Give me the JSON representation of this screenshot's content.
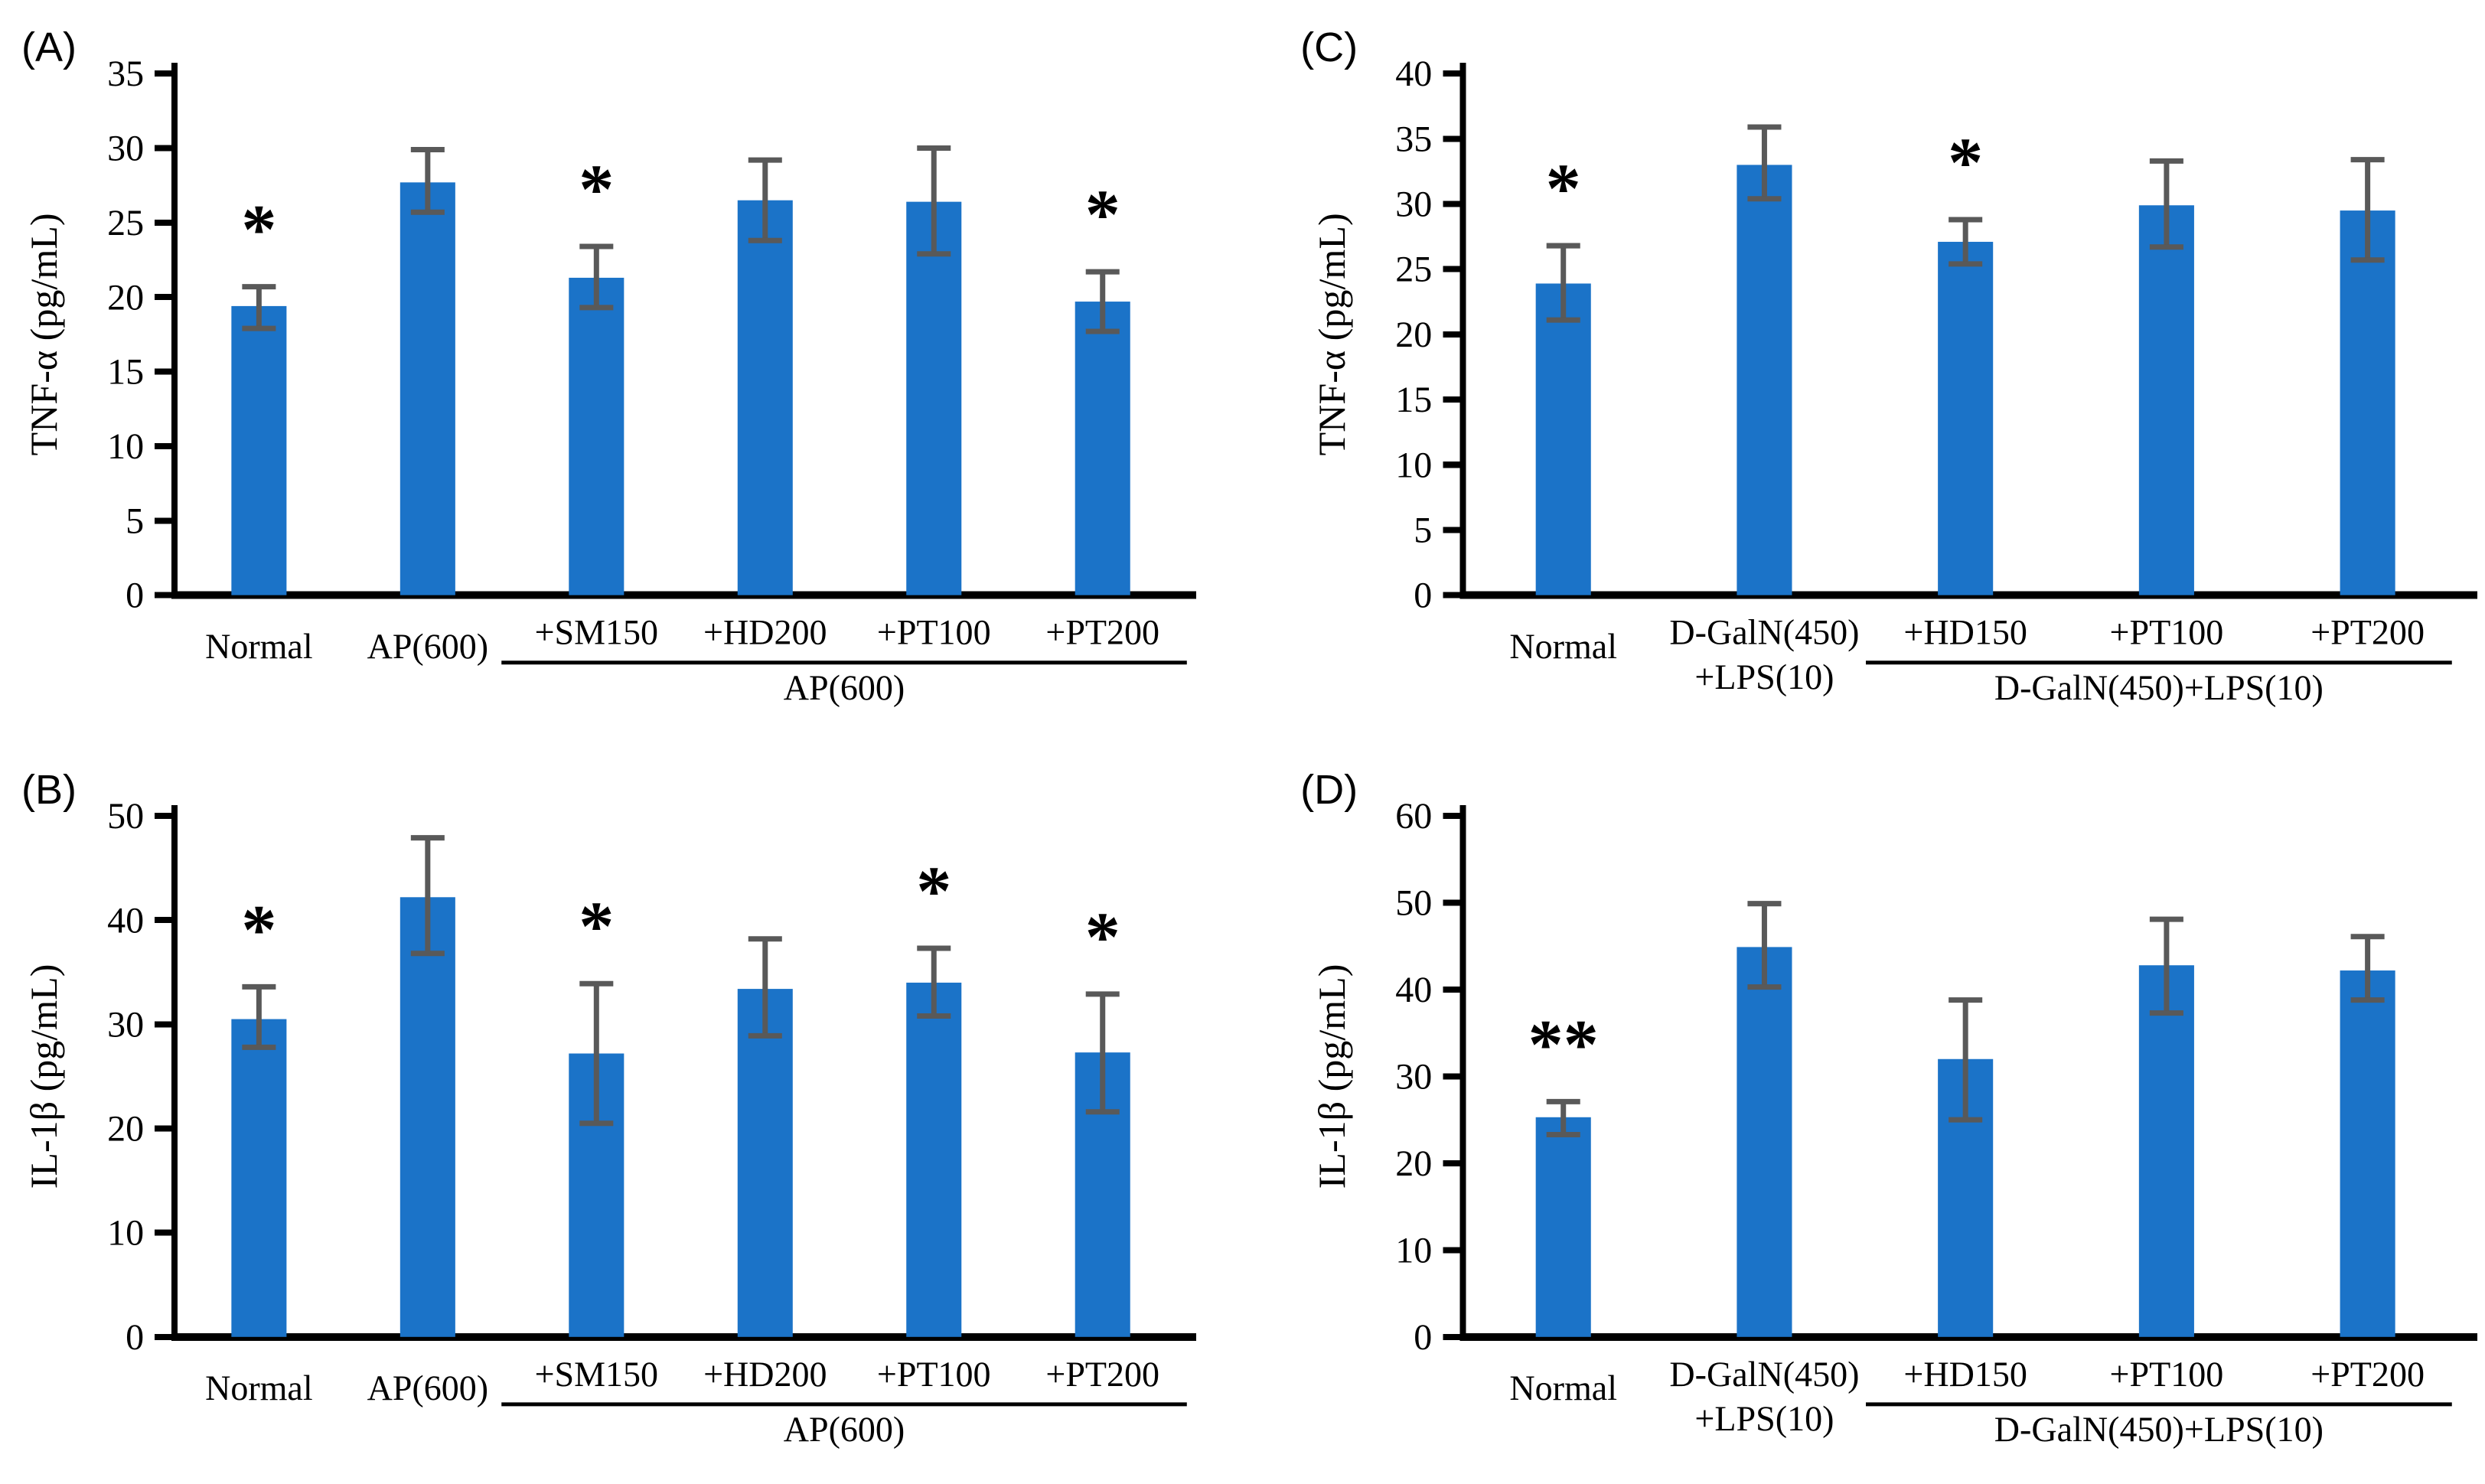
{
  "figure": {
    "bar_color": "#1B73C8",
    "error_color": "#595959",
    "axis_color": "#000000",
    "background": "#ffffff"
  },
  "chart_data": [
    {
      "type": "bar",
      "panel_letter": "(A)",
      "ylabel": "TNF-α (pg/mL)",
      "xlabel": "",
      "title": "",
      "ylim": [
        0,
        35
      ],
      "yticks": [
        0,
        5,
        10,
        15,
        20,
        25,
        30,
        35
      ],
      "grid": false,
      "legend": null,
      "categories": [
        "Normal",
        "AP(600)",
        "+SM150",
        "+HD200",
        "+PT100",
        "+PT200"
      ],
      "category_lines": [
        [
          "Normal"
        ],
        [
          "AP(600)"
        ],
        [
          "+SM150"
        ],
        [
          "+HD200"
        ],
        [
          "+PT100"
        ],
        [
          "+PT200"
        ]
      ],
      "values": [
        19.4,
        27.7,
        21.3,
        26.5,
        26.4,
        19.7
      ],
      "err_up": [
        1.3,
        2.2,
        2.1,
        2.7,
        3.6,
        2.0
      ],
      "err_down": [
        1.5,
        2.0,
        2.0,
        2.7,
        3.5,
        2.0
      ],
      "sig": [
        "*",
        "",
        "*",
        "",
        "",
        "*"
      ],
      "group": {
        "start": 2,
        "end": 5,
        "label": "AP(600)"
      }
    },
    {
      "type": "bar",
      "panel_letter": "(C)",
      "ylabel": "TNF-α (pg/mL)",
      "xlabel": "",
      "title": "",
      "ylim": [
        0,
        40
      ],
      "yticks": [
        0,
        5,
        10,
        15,
        20,
        25,
        30,
        35,
        40
      ],
      "grid": false,
      "legend": null,
      "categories": [
        "Normal",
        "D-GalN(450)+LPS(10)",
        "+HD150",
        "+PT100",
        "+PT200"
      ],
      "category_lines": [
        [
          "Normal"
        ],
        [
          "D-GalN(450)",
          "+LPS(10)"
        ],
        [
          "+HD150"
        ],
        [
          "+PT100"
        ],
        [
          "+PT200"
        ]
      ],
      "values": [
        23.9,
        33.0,
        27.1,
        29.9,
        29.5
      ],
      "err_up": [
        2.9,
        2.9,
        1.7,
        3.4,
        3.9
      ],
      "err_down": [
        2.8,
        2.6,
        1.7,
        3.2,
        3.8
      ],
      "sig": [
        "*",
        "",
        "*",
        "",
        ""
      ],
      "group": {
        "start": 2,
        "end": 4,
        "label": "D-GalN(450)+LPS(10)"
      }
    },
    {
      "type": "bar",
      "panel_letter": "(B)",
      "ylabel": "IL-1β (pg/mL)",
      "xlabel": "",
      "title": "",
      "ylim": [
        0,
        50
      ],
      "yticks": [
        0,
        10,
        20,
        30,
        40,
        50
      ],
      "grid": false,
      "legend": null,
      "categories": [
        "Normal",
        "AP(600)",
        "+SM150",
        "+HD200",
        "+PT100",
        "+PT200"
      ],
      "category_lines": [
        [
          "Normal"
        ],
        [
          "AP(600)"
        ],
        [
          "+SM150"
        ],
        [
          "+HD200"
        ],
        [
          "+PT100"
        ],
        [
          "+PT200"
        ]
      ],
      "values": [
        30.5,
        42.2,
        27.2,
        33.4,
        34.0,
        27.3
      ],
      "err_up": [
        3.1,
        5.7,
        6.7,
        4.8,
        3.3,
        5.6
      ],
      "err_down": [
        2.7,
        5.4,
        6.7,
        4.5,
        3.2,
        5.7
      ],
      "sig": [
        "*",
        "",
        "*",
        "",
        "*",
        "*"
      ],
      "group": {
        "start": 2,
        "end": 5,
        "label": "AP(600)"
      }
    },
    {
      "type": "bar",
      "panel_letter": "(D)",
      "ylabel": "IL-1β (pg/mL)",
      "xlabel": "",
      "title": "",
      "ylim": [
        0,
        60
      ],
      "yticks": [
        0,
        10,
        20,
        30,
        40,
        50,
        60
      ],
      "grid": false,
      "legend": null,
      "categories": [
        "Normal",
        "D-GalN(450)+LPS(10)",
        "+HD150",
        "+PT100",
        "+PT200"
      ],
      "category_lines": [
        [
          "Normal"
        ],
        [
          "D-GalN(450)",
          "+LPS(10)"
        ],
        [
          "+HD150"
        ],
        [
          "+PT100"
        ],
        [
          "+PT200"
        ]
      ],
      "values": [
        25.3,
        44.9,
        32.0,
        42.8,
        42.2
      ],
      "err_up": [
        1.8,
        5.0,
        6.8,
        5.3,
        3.9
      ],
      "err_down": [
        2.0,
        4.6,
        7.0,
        5.5,
        3.4
      ],
      "sig": [
        "**",
        "",
        "",
        "",
        ""
      ],
      "group": {
        "start": 2,
        "end": 4,
        "label": "D-GalN(450)+LPS(10)"
      }
    }
  ]
}
